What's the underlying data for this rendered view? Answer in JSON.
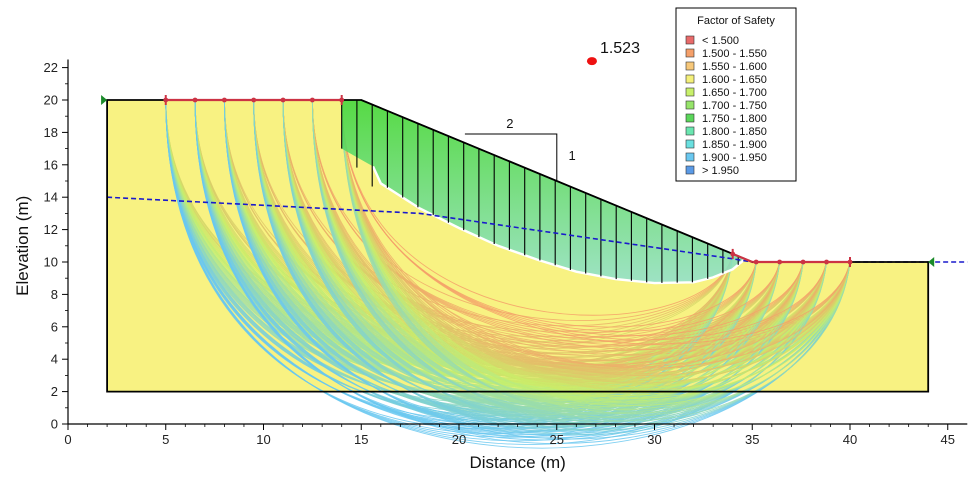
{
  "chart_data": {
    "type": "scatter",
    "title": "",
    "xlabel": "Distance (m)",
    "ylabel": "Elevation (m)",
    "xlim": [
      0,
      46
    ],
    "ylim": [
      0,
      22.5
    ],
    "xticks": [
      0,
      5,
      10,
      15,
      20,
      25,
      30,
      35,
      40,
      45
    ],
    "yticks": [
      0,
      2,
      4,
      6,
      8,
      10,
      12,
      14,
      16,
      18,
      20,
      22
    ],
    "slope_profile": [
      [
        2,
        2
      ],
      [
        2,
        20
      ],
      [
        15,
        20
      ],
      [
        35,
        10
      ],
      [
        44,
        10
      ],
      [
        44,
        2
      ]
    ],
    "water_table": [
      [
        2,
        14
      ],
      [
        18,
        13
      ],
      [
        34,
        10.2
      ],
      [
        35,
        10
      ],
      [
        46,
        10
      ]
    ],
    "entry_range": [
      5,
      14
    ],
    "exit_range": [
      34,
      40
    ],
    "critical_center": [
      26.8,
      22.4
    ],
    "critical_fos": "1.523",
    "critical_surface": [
      [
        15.6,
        15.9
      ],
      [
        16,
        14.85
      ],
      [
        18,
        13.3
      ],
      [
        20,
        12.1
      ],
      [
        22,
        11
      ],
      [
        24,
        10.15
      ],
      [
        26,
        9.4
      ],
      [
        28,
        8.95
      ],
      [
        30,
        8.7
      ],
      [
        32,
        8.75
      ],
      [
        33,
        9.05
      ],
      [
        34,
        9.55
      ],
      [
        34.6,
        10.15
      ]
    ],
    "slope_ratio": {
      "run": "2",
      "rise": "1"
    },
    "legend": {
      "title": "Factor of Safety",
      "position": "top-right",
      "entries": [
        {
          "label": "< 1.500",
          "color": "#e86a6a"
        },
        {
          "label": "1.500 - 1.550",
          "color": "#f5a06a"
        },
        {
          "label": "1.550 - 1.600",
          "color": "#f7c87a"
        },
        {
          "label": "1.600 - 1.650",
          "color": "#f4f07a"
        },
        {
          "label": "1.650 - 1.700",
          "color": "#c8f06a"
        },
        {
          "label": "1.700 - 1.750",
          "color": "#96e46a"
        },
        {
          "label": "1.750 - 1.800",
          "color": "#5ad65a"
        },
        {
          "label": "1.800 - 1.850",
          "color": "#6ae6b0"
        },
        {
          "label": "1.850 - 1.900",
          "color": "#6ae0e0"
        },
        {
          "label": "1.900 - 1.950",
          "color": "#6ac8f0"
        },
        {
          "label": "> 1.950",
          "color": "#5a9ae6"
        }
      ]
    },
    "colors": {
      "soil": "#f8f282",
      "water": "#1a1acc",
      "critical_slip": "#ffffff",
      "slip_line_low": "#f5a06a",
      "slip_line_mid": "#c8f06a",
      "slip_line_high": "#6ac8f0",
      "wedge": "#3ad63a",
      "entry_marker": "#cc3344",
      "support": "#1a8a2a"
    }
  }
}
